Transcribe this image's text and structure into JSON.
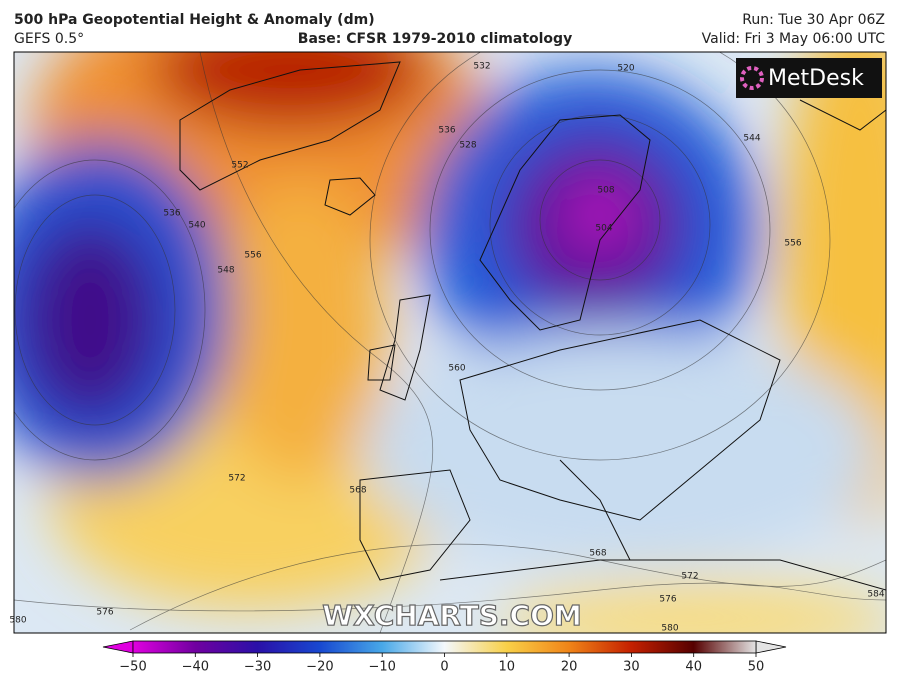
{
  "header": {
    "title": "500 hPa Geopotential Height & Anomaly (dm)",
    "model": "GEFS 0.5°",
    "base": "Base: CFSR 1979-2010 climatology",
    "run": "Run: Tue 30 Apr 06Z",
    "valid": "Valid: Fri 3 May 06:00 UTC"
  },
  "map": {
    "contour_labels": [
      "532",
      "520",
      "536",
      "528",
      "552",
      "536",
      "540",
      "548",
      "556",
      "544",
      "556",
      "508",
      "504",
      "560",
      "572",
      "568",
      "568",
      "572",
      "576",
      "576",
      "580",
      "584",
      "580"
    ],
    "watermark": "WXCHARTS.COM",
    "logo": "MetDesk"
  },
  "colorbar": {
    "lim": [
      -50,
      50
    ],
    "ticks": [
      {
        "value": -50,
        "label": "−50"
      },
      {
        "value": -40,
        "label": "−40"
      },
      {
        "value": -30,
        "label": "−30"
      },
      {
        "value": -20,
        "label": "−20"
      },
      {
        "value": -10,
        "label": "−10"
      },
      0,
      10,
      20,
      30,
      40,
      50
    ],
    "colors": [
      "#e000e0",
      "#7000a0",
      "#2a10a8",
      "#1848d0",
      "#48a8e8",
      "#f4f8fc",
      "#f8d048",
      "#f08418",
      "#c42000",
      "#560000",
      "#e4e4e4"
    ]
  }
}
